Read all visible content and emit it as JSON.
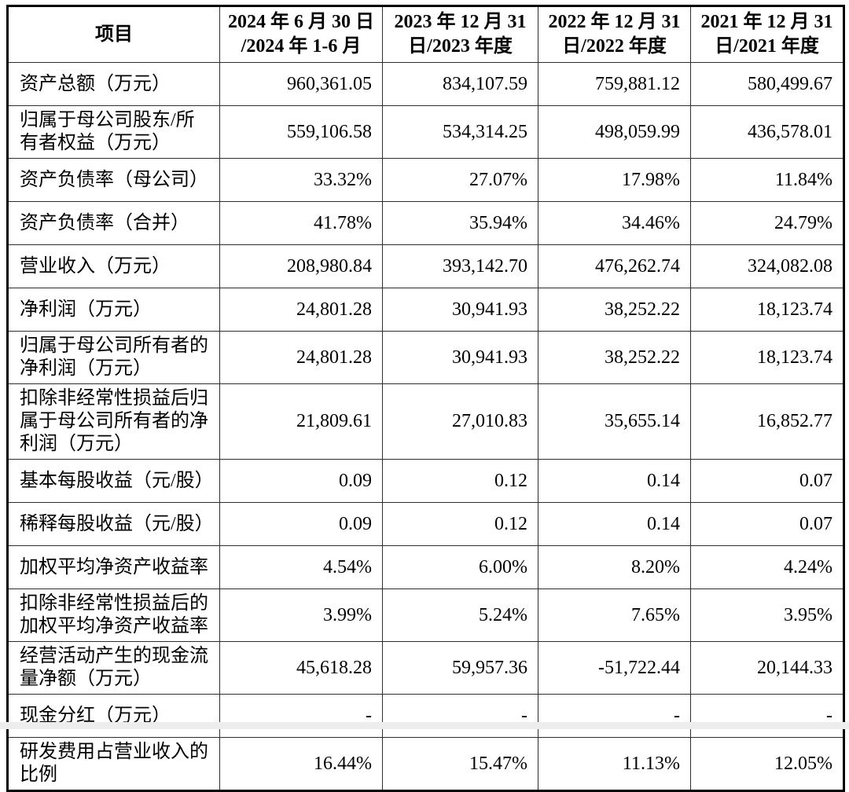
{
  "table": {
    "border_color": "#000000",
    "text_color": "#000000",
    "header": {
      "item_label": "项目",
      "periods": [
        {
          "line1": "2024 年 6 月 30 日",
          "line2": "/2024 年 1-6 月"
        },
        {
          "line1": "2023 年 12 月 31",
          "line2": "日/2023 年度"
        },
        {
          "line1": "2022 年 12 月 31",
          "line2": "日/2022 年度"
        },
        {
          "line1": "2021 年 12 月 31",
          "line2": "日/2021 年度"
        }
      ]
    },
    "rows": [
      {
        "label": "资产总额（万元）",
        "values": [
          "960,361.05",
          "834,107.59",
          "759,881.12",
          "580,499.67"
        ]
      },
      {
        "label": "归属于母公司股东/所有者权益（万元）",
        "values": [
          "559,106.58",
          "534,314.25",
          "498,059.99",
          "436,578.01"
        ]
      },
      {
        "label": "资产负债率（母公司）",
        "values": [
          "33.32%",
          "27.07%",
          "17.98%",
          "11.84%"
        ]
      },
      {
        "label": "资产负债率（合并）",
        "values": [
          "41.78%",
          "35.94%",
          "34.46%",
          "24.79%"
        ]
      },
      {
        "label": "营业收入（万元）",
        "values": [
          "208,980.84",
          "393,142.70",
          "476,262.74",
          "324,082.08"
        ]
      },
      {
        "label": "净利润（万元）",
        "values": [
          "24,801.28",
          "30,941.93",
          "38,252.22",
          "18,123.74"
        ]
      },
      {
        "label": "归属于母公司所有者的净利润（万元）",
        "values": [
          "24,801.28",
          "30,941.93",
          "38,252.22",
          "18,123.74"
        ]
      },
      {
        "label": "扣除非经常性损益后归属于母公司所有者的净利润（万元）",
        "values": [
          "21,809.61",
          "27,010.83",
          "35,655.14",
          "16,852.77"
        ]
      },
      {
        "label": "基本每股收益（元/股）",
        "values": [
          "0.09",
          "0.12",
          "0.14",
          "0.07"
        ]
      },
      {
        "label": "稀释每股收益（元/股）",
        "values": [
          "0.09",
          "0.12",
          "0.14",
          "0.07"
        ]
      },
      {
        "label": "加权平均净资产收益率",
        "values": [
          "4.54%",
          "6.00%",
          "8.20%",
          "4.24%"
        ]
      },
      {
        "label": "扣除非经常性损益后的加权平均净资产收益率",
        "values": [
          "3.99%",
          "5.24%",
          "7.65%",
          "3.95%"
        ]
      },
      {
        "label": "经营活动产生的现金流量净额（万元）",
        "values": [
          "45,618.28",
          "59,957.36",
          "-51,722.44",
          "20,144.33"
        ]
      },
      {
        "label": "现金分红（万元）",
        "values": [
          "-",
          "-",
          "-",
          "-"
        ]
      },
      {
        "label": "研发费用占营业收入的比例",
        "values": [
          "16.44%",
          "15.47%",
          "11.13%",
          "12.05%"
        ]
      }
    ]
  }
}
